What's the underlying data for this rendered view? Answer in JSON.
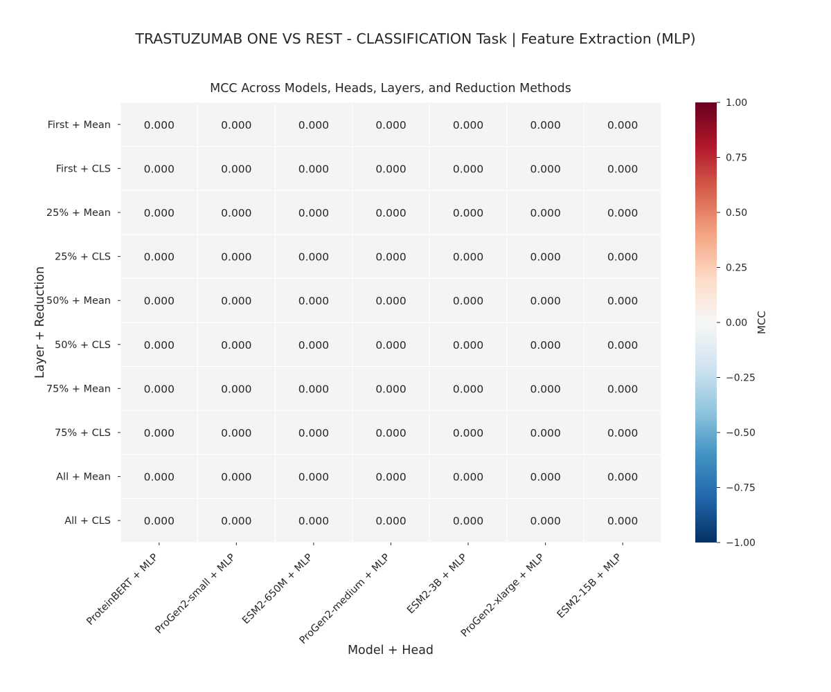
{
  "figure_title": "TRASTUZUMAB ONE VS REST - CLASSIFICATION Task | Feature Extraction (MLP)",
  "chart_data": {
    "type": "heatmap",
    "title": "MCC Across Models, Heads, Layers, and Reduction Methods",
    "xlabel": "Model + Head",
    "ylabel": "Layer + Reduction",
    "x": [
      "ProteinBERT + MLP",
      "ProGen2-small + MLP",
      "ESM2-650M + MLP",
      "ProGen2-medium + MLP",
      "ESM2-3B + MLP",
      "ProGen2-xlarge + MLP",
      "ESM2-15B + MLP"
    ],
    "y": [
      "First + Mean",
      "First + CLS",
      "25% + Mean",
      "25% + CLS",
      "50% + Mean",
      "50% + CLS",
      "75% + Mean",
      "75% + CLS",
      "All + Mean",
      "All + CLS"
    ],
    "values": [
      [
        0,
        0,
        0,
        0,
        0,
        0,
        0
      ],
      [
        0,
        0,
        0,
        0,
        0,
        0,
        0
      ],
      [
        0,
        0,
        0,
        0,
        0,
        0,
        0
      ],
      [
        0,
        0,
        0,
        0,
        0,
        0,
        0
      ],
      [
        0,
        0,
        0,
        0,
        0,
        0,
        0
      ],
      [
        0,
        0,
        0,
        0,
        0,
        0,
        0
      ],
      [
        0,
        0,
        0,
        0,
        0,
        0,
        0
      ],
      [
        0,
        0,
        0,
        0,
        0,
        0,
        0
      ],
      [
        0,
        0,
        0,
        0,
        0,
        0,
        0
      ],
      [
        0,
        0,
        0,
        0,
        0,
        0,
        0
      ]
    ],
    "annotations": [
      [
        "0.000",
        "0.000",
        "0.000",
        "0.000",
        "0.000",
        "0.000",
        "0.000"
      ],
      [
        "0.000",
        "0.000",
        "0.000",
        "0.000",
        "0.000",
        "0.000",
        "0.000"
      ],
      [
        "0.000",
        "0.000",
        "0.000",
        "0.000",
        "0.000",
        "0.000",
        "0.000"
      ],
      [
        "0.000",
        "0.000",
        "0.000",
        "0.000",
        "0.000",
        "0.000",
        "0.000"
      ],
      [
        "0.000",
        "0.000",
        "0.000",
        "0.000",
        "0.000",
        "0.000",
        "0.000"
      ],
      [
        "0.000",
        "0.000",
        "0.000",
        "0.000",
        "0.000",
        "0.000",
        "0.000"
      ],
      [
        "0.000",
        "0.000",
        "0.000",
        "0.000",
        "0.000",
        "0.000",
        "0.000"
      ],
      [
        "0.000",
        "0.000",
        "0.000",
        "0.000",
        "0.000",
        "0.000",
        "0.000"
      ],
      [
        "0.000",
        "0.000",
        "0.000",
        "0.000",
        "0.000",
        "0.000",
        "0.000"
      ],
      [
        "0.000",
        "0.000",
        "0.000",
        "0.000",
        "0.000",
        "0.000",
        "0.000"
      ]
    ],
    "colorbar": {
      "label": "MCC",
      "colormap": "RdBu_r",
      "vmin": -1.0,
      "vmax": 1.0,
      "ticks": [
        1.0,
        0.75,
        0.5,
        0.25,
        0.0,
        -0.25,
        -0.5,
        -0.75,
        -1.0
      ],
      "tick_labels": [
        "1.00",
        "0.75",
        "0.50",
        "0.25",
        "0.00",
        "−0.25",
        "−0.50",
        "−0.75",
        "−1.00"
      ]
    },
    "colors": {
      "cell_zero": "#f4f4f4",
      "cell_border": "#ffffff",
      "text": "#262626"
    },
    "grid": false
  }
}
